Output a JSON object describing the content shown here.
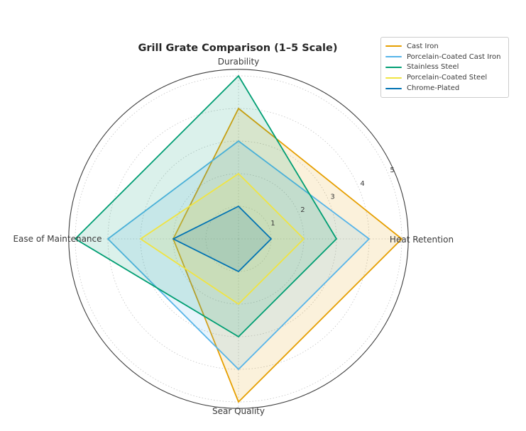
{
  "chart_data": {
    "type": "radar",
    "title": "Grill Grate Comparison (1–5 Scale)",
    "categories": [
      "Durability",
      "Heat Retention",
      "Sear Quality",
      "Ease of Maintenance"
    ],
    "series": [
      {
        "name": "Cast Iron",
        "color": "#E69F00",
        "values": [
          4,
          5,
          5,
          2
        ]
      },
      {
        "name": "Porcelain-Coated Cast Iron",
        "color": "#56B4E9",
        "values": [
          3,
          4,
          4,
          4
        ]
      },
      {
        "name": "Stainless Steel",
        "color": "#009E73",
        "values": [
          5,
          3,
          3,
          5
        ]
      },
      {
        "name": "Porcelain-Coated Steel",
        "color": "#F0E442",
        "values": [
          2,
          2,
          2,
          3
        ]
      },
      {
        "name": "Chrome-Plated",
        "color": "#0072B2",
        "values": [
          1,
          1,
          1,
          2
        ]
      }
    ],
    "radial_ticks": [
      1,
      2,
      3,
      4,
      5
    ],
    "r_range": [
      0,
      5.2
    ],
    "grid": true,
    "legend_position": "upper right",
    "style": {
      "grid_color": "#c4c4c4",
      "spine_color": "#3d3d3d",
      "text_color": "#3a3a3a",
      "fill_opacity": 0.14
    }
  }
}
